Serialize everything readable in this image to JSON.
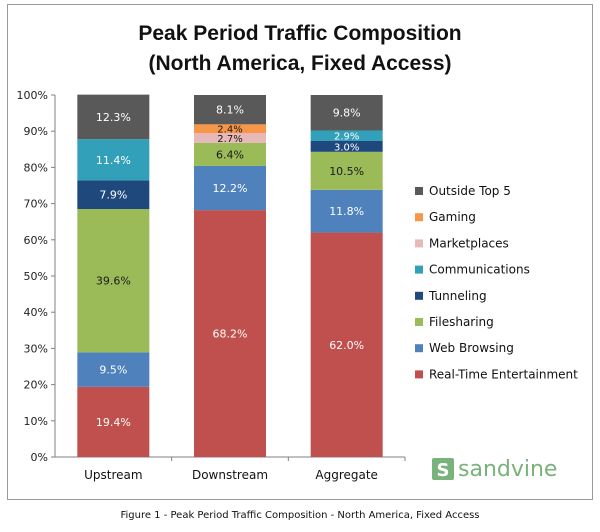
{
  "chart_data": {
    "type": "stacked-bar",
    "title": "Peak Period Traffic Composition",
    "subtitle": "(North America, Fixed Access)",
    "categories": [
      "Upstream",
      "Downstream",
      "Aggregate"
    ],
    "ylim": [
      0,
      100
    ],
    "y_ticks": [
      "0%",
      "10%",
      "20%",
      "30%",
      "40%",
      "50%",
      "60%",
      "70%",
      "80%",
      "90%",
      "100%"
    ],
    "grid": false,
    "legend_position": "right",
    "series": [
      {
        "name": "Real-Time Entertainment",
        "color": "#c0504d",
        "values": [
          19.4,
          68.2,
          62.0
        ],
        "labels": [
          "19.4%",
          "68.2%",
          "62.0%"
        ]
      },
      {
        "name": "Web Browsing",
        "color": "#4f81bd",
        "values": [
          9.5,
          12.2,
          11.8
        ],
        "labels": [
          "9.5%",
          "12.2%",
          "11.8%"
        ]
      },
      {
        "name": "Filesharing",
        "color": "#9bbb59",
        "values": [
          39.6,
          6.4,
          10.5
        ],
        "labels": [
          "39.6%",
          "6.4%",
          "10.5%"
        ]
      },
      {
        "name": "Tunneling",
        "color": "#1f497d",
        "values": [
          7.9,
          0,
          3.0
        ],
        "labels": [
          "7.9%",
          "",
          "3.0%"
        ]
      },
      {
        "name": "Communications",
        "color": "#31a0b8",
        "values": [
          11.4,
          0,
          2.9
        ],
        "labels": [
          "11.4%",
          "",
          "2.9%"
        ]
      },
      {
        "name": "Marketplaces",
        "color": "#e6b9b8",
        "values": [
          0,
          2.7,
          0
        ],
        "labels": [
          "",
          "2.7%",
          ""
        ]
      },
      {
        "name": "Gaming",
        "color": "#f79646",
        "values": [
          0,
          2.4,
          0
        ],
        "labels": [
          "",
          "2.4%",
          ""
        ]
      },
      {
        "name": "Outside Top 5",
        "color": "#595959",
        "values": [
          12.3,
          8.1,
          9.8
        ],
        "labels": [
          "12.3%",
          "8.1%",
          "9.8%"
        ]
      }
    ],
    "legend_order": [
      "Outside Top 5",
      "Gaming",
      "Marketplaces",
      "Communications",
      "Tunneling",
      "Filesharing",
      "Web Browsing",
      "Real-Time Entertainment"
    ]
  },
  "logo": {
    "text": "sandvine",
    "color": "#79b27a"
  },
  "caption": "Figure 1 - Peak Period Traffic Composition - North America, Fixed Access"
}
